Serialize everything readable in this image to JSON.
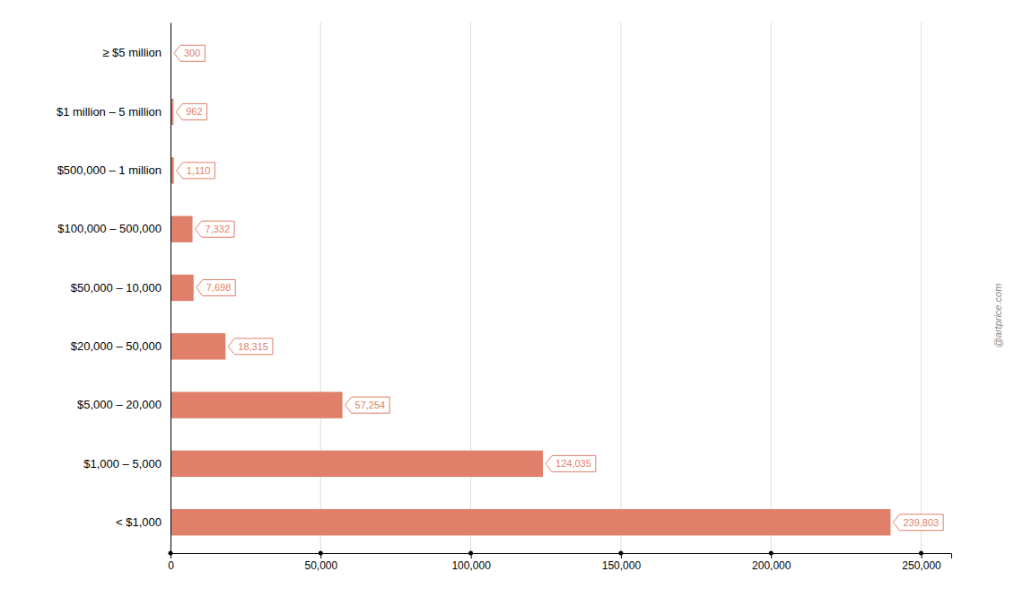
{
  "chart_data": {
    "type": "bar",
    "orientation": "horizontal",
    "categories": [
      "< $1,000",
      "$1,000 – 5,000",
      "$5,000 – 20,000",
      "$20,000 – 50,000",
      "$50,000 – 10,000",
      "$100,000 – 500,000",
      "$500,000 – 1 million",
      "$1 million – 5 million",
      "≥ $5 million"
    ],
    "values": [
      239803,
      124035,
      57254,
      18315,
      7698,
      7332,
      1110,
      962,
      300
    ],
    "value_labels": [
      "239,803",
      "124,035",
      "57,254",
      "18,315",
      "7,698",
      "7,332",
      "1,110",
      "962",
      "300"
    ],
    "data_labels": true,
    "color": "#e07f6a",
    "xlim": [
      0,
      260000
    ],
    "xticks": [
      0,
      {
        "value": 50000,
        "label": "50,000"
      },
      {
        "value": 100000,
        "label": "100,000"
      },
      {
        "value": 150000,
        "label": "150,000"
      },
      {
        "value": 200000,
        "label": "200,000"
      },
      {
        "value": 250000,
        "label": "250,000"
      }
    ],
    "grid": true,
    "annotations": [
      "@artprice.com"
    ]
  }
}
